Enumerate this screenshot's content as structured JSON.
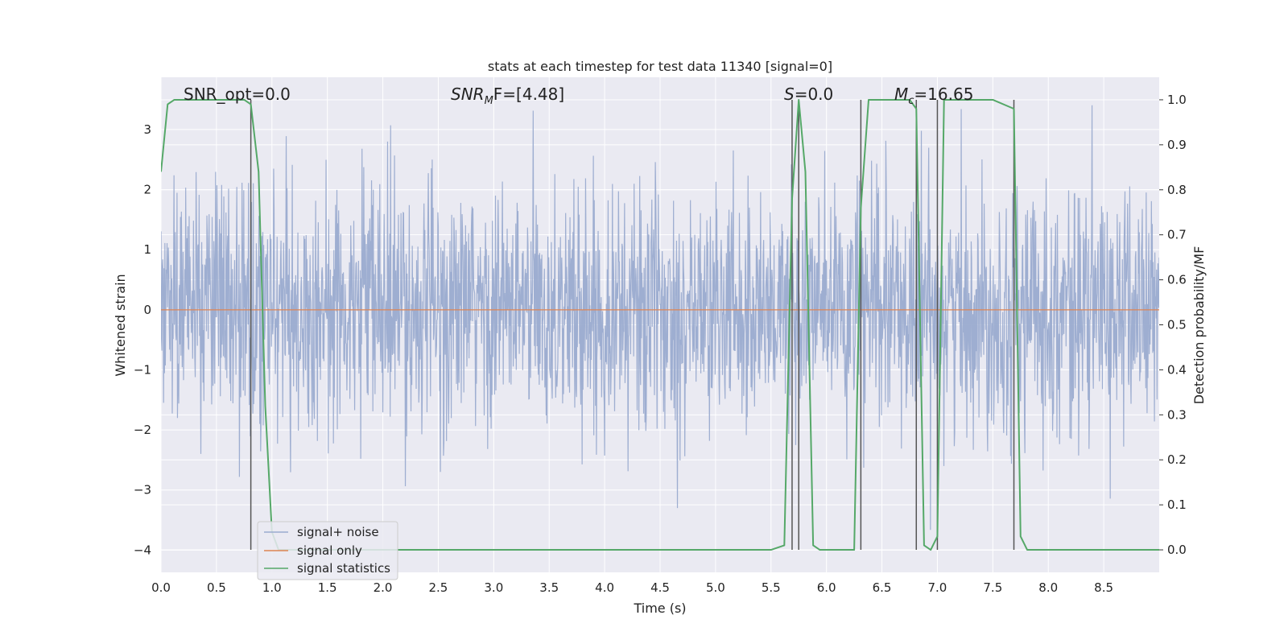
{
  "chart_data": {
    "type": "line",
    "title": "stats at each timestep for test data 11340 [signal=0]",
    "xlabel": "Time (s)",
    "ylabel_left": "Whitened strain",
    "ylabel_right": "Detection probability/MF",
    "xlim": [
      0.0,
      9.0
    ],
    "ylim_left": [
      -4.37,
      3.87
    ],
    "ylim_right": [
      -0.05,
      1.05
    ],
    "x_ticks": [
      "0.0",
      "0.5",
      "1.0",
      "1.5",
      "2.0",
      "2.5",
      "3.0",
      "3.5",
      "4.0",
      "4.5",
      "5.0",
      "5.5",
      "6.0",
      "6.5",
      "7.0",
      "7.5",
      "8.0",
      "8.5"
    ],
    "y_left_ticks": [
      "3",
      "2",
      "1",
      "0",
      "−1",
      "−2",
      "−3",
      "−4"
    ],
    "y_right_ticks": [
      "1.0",
      "0.9",
      "0.8",
      "0.7",
      "0.6",
      "0.5",
      "0.4",
      "0.3",
      "0.2",
      "0.1",
      "0.0"
    ],
    "grid": true,
    "legend_position": "lower-left",
    "annotations": {
      "snr_opt": "SNR_opt=0.0",
      "snr_mf_sym": "SNR",
      "snr_mf_sub": "M",
      "snr_mf_tail": "F=[4.48]",
      "s_sym": "S",
      "s_tail": "=0.0",
      "mc_sym": "M",
      "mc_sub": "c",
      "mc_tail": "=16.65"
    },
    "series": [
      {
        "name": "signal+ noise",
        "color": "#9aabcf",
        "axis": "left",
        "kind": "noise",
        "sample_rate_hz": 256,
        "std": 1.0,
        "x_range": [
          0.0,
          9.0
        ]
      },
      {
        "name": "signal only",
        "color": "#dd8452",
        "axis": "left",
        "x": [
          0.0,
          9.0
        ],
        "y": [
          0.0,
          0.0
        ]
      },
      {
        "name": "signal statistics",
        "color": "#55a868",
        "axis": "right",
        "x": [
          0.0,
          0.06,
          0.12,
          0.18,
          0.25,
          0.5,
          0.75,
          0.81,
          0.88,
          0.94,
          1.0,
          1.06,
          1.5,
          2.0,
          3.0,
          4.0,
          5.0,
          5.5,
          5.62,
          5.69,
          5.75,
          5.81,
          5.88,
          5.94,
          6.0,
          6.25,
          6.31,
          6.38,
          6.44,
          6.5,
          6.75,
          6.81,
          6.88,
          6.94,
          7.0,
          7.06,
          7.5,
          7.69,
          7.75,
          7.81,
          7.88,
          8.0,
          8.5,
          8.88,
          8.94,
          9.0
        ],
        "y": [
          0.84,
          0.99,
          1.0,
          1.0,
          1.0,
          1.0,
          1.0,
          0.99,
          0.84,
          0.32,
          0.04,
          0.0,
          0.0,
          0.0,
          0.0,
          0.0,
          0.0,
          0.0,
          0.01,
          0.78,
          1.0,
          0.84,
          0.01,
          0.0,
          0.0,
          0.0,
          0.76,
          1.0,
          1.0,
          1.0,
          1.0,
          0.98,
          0.01,
          0.0,
          0.03,
          1.0,
          1.0,
          0.98,
          0.03,
          0.0,
          0.0,
          0.0,
          0.0,
          0.0,
          0.0,
          0.0
        ]
      }
    ],
    "vertical_lines_x": [
      0.81,
      5.69,
      5.75,
      6.31,
      6.81,
      7.0,
      7.69
    ],
    "vertical_line_color": "#555555"
  }
}
